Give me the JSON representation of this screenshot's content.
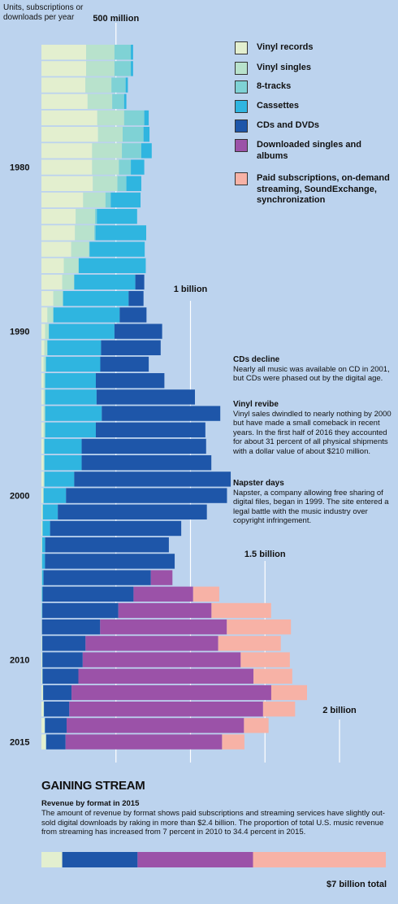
{
  "chart_data": [
    {
      "type": "bar",
      "subtype": "stacked-horizontal",
      "unit_label": "Units, subscriptions or downloads per year",
      "years": [
        1973,
        1974,
        1975,
        1976,
        1977,
        1978,
        1979,
        1980,
        1981,
        1982,
        1983,
        1984,
        1985,
        1986,
        1987,
        1988,
        1989,
        1990,
        1991,
        1992,
        1993,
        1994,
        1995,
        1996,
        1997,
        1998,
        1999,
        2000,
        2001,
        2002,
        2003,
        2004,
        2005,
        2006,
        2007,
        2008,
        2009,
        2010,
        2011,
        2012,
        2013,
        2014,
        2015
      ],
      "year_labels": [
        "1980",
        "1990",
        "2000",
        "2010",
        "2015"
      ],
      "gridlines": [
        {
          "value": 500,
          "label": "500 million"
        },
        {
          "value": 1000,
          "label": "1 billion"
        },
        {
          "value": 1500,
          "label": "1.5 billion"
        },
        {
          "value": 2000,
          "label": "2 billion"
        }
      ],
      "unit": "millions",
      "series": [
        {
          "name": "Vinyl records",
          "color": "#e3efcf",
          "values": [
            300,
            300,
            295,
            310,
            375,
            380,
            340,
            340,
            345,
            280,
            230,
            225,
            200,
            150,
            140,
            80,
            40,
            25,
            20,
            15,
            15,
            15,
            15,
            15,
            15,
            15,
            15,
            10,
            5,
            5,
            3,
            2,
            2,
            2,
            2,
            2,
            4,
            5,
            6,
            10,
            15,
            22,
            30
          ]
        },
        {
          "name": "Vinyl singles",
          "color": "#b8e2cc",
          "values": [
            190,
            190,
            175,
            165,
            180,
            165,
            200,
            180,
            165,
            150,
            130,
            130,
            120,
            100,
            80,
            65,
            40,
            25,
            20,
            15,
            10,
            10,
            10,
            10,
            5,
            5,
            5,
            5,
            5,
            3,
            2,
            2,
            2,
            1,
            1,
            1,
            1,
            1,
            1,
            1,
            1,
            1,
            1
          ]
        },
        {
          "name": "8-tracks",
          "color": "#7fd2d5",
          "values": [
            110,
            110,
            95,
            80,
            135,
            140,
            130,
            80,
            60,
            35,
            12,
            8,
            3,
            0,
            0,
            0,
            0,
            0,
            0,
            0,
            0,
            0,
            0,
            0,
            0,
            0,
            0,
            0,
            0,
            0,
            0,
            0,
            0,
            0,
            0,
            0,
            0,
            0,
            0,
            0,
            0,
            0,
            0
          ]
        },
        {
          "name": "Cassettes",
          "color": "#2fb5e0",
          "values": [
            15,
            15,
            15,
            15,
            30,
            40,
            70,
            90,
            100,
            200,
            270,
            340,
            370,
            450,
            410,
            440,
            445,
            440,
            360,
            365,
            340,
            345,
            380,
            340,
            250,
            250,
            200,
            150,
            100,
            50,
            20,
            20,
            10,
            5,
            3,
            1,
            1,
            1,
            1,
            1,
            1,
            1,
            1
          ]
        },
        {
          "name": "CDs and DVDs",
          "color": "#1e56a9",
          "values": [
            0,
            0,
            0,
            0,
            0,
            0,
            0,
            0,
            0,
            0,
            0,
            0,
            0,
            0,
            60,
            100,
            180,
            320,
            400,
            325,
            460,
            660,
            795,
            735,
            835,
            870,
            1050,
            1080,
            1000,
            880,
            830,
            870,
            720,
            610,
            510,
            390,
            290,
            270,
            240,
            190,
            170,
            145,
            130
          ]
        },
        {
          "name": "Downloaded singles and albums",
          "color": "#9b52a8",
          "values": [
            0,
            0,
            0,
            0,
            0,
            0,
            0,
            0,
            0,
            0,
            0,
            0,
            0,
            0,
            0,
            0,
            0,
            0,
            0,
            0,
            0,
            0,
            0,
            0,
            0,
            0,
            0,
            0,
            0,
            0,
            0,
            0,
            145,
            400,
            625,
            850,
            890,
            1060,
            1175,
            1340,
            1300,
            1190,
            1050
          ]
        },
        {
          "name": "Paid subscriptions, on-demand streaming, SoundExchange, synchronization",
          "color": "#f7b2a6",
          "values": [
            0,
            0,
            0,
            0,
            0,
            0,
            0,
            0,
            0,
            0,
            0,
            0,
            0,
            0,
            0,
            0,
            0,
            0,
            0,
            0,
            0,
            0,
            0,
            0,
            0,
            0,
            0,
            0,
            0,
            0,
            0,
            0,
            0,
            175,
            400,
            430,
            420,
            330,
            260,
            240,
            215,
            165,
            150
          ]
        }
      ]
    },
    {
      "type": "bar",
      "subtype": "stacked-100",
      "title": "GAINING STREAM",
      "subtitle": "Revenue by format in 2015",
      "total_label": "$7 billion total",
      "segments": [
        {
          "name": "Vinyl records",
          "color": "#e3efcf",
          "value": 0.42
        },
        {
          "name": "CDs and DVDs",
          "color": "#1e56a9",
          "value": 1.52
        },
        {
          "name": "Downloaded singles and albums",
          "color": "#9b52a8",
          "value": 2.33
        },
        {
          "name": "Paid subscriptions, on-demand streaming, SoundExchange, synchronization",
          "color": "#f7b2a6",
          "value": 2.68
        }
      ]
    }
  ],
  "text": {
    "unit_label": "Units, subscriptions or downloads per year",
    "legend": [
      {
        "label": "Vinyl records",
        "color": "#e3efcf"
      },
      {
        "label": "Vinyl singles",
        "color": "#b8e2cc"
      },
      {
        "label": "8-tracks",
        "color": "#7fd2d5"
      },
      {
        "label": "Cassettes",
        "color": "#2fb5e0"
      },
      {
        "label": "CDs and DVDs",
        "color": "#1e56a9"
      },
      {
        "label": "Downloaded singles and albums",
        "color": "#9b52a8"
      },
      {
        "label": "Paid subscriptions, on-demand streaming, SoundExchange, synchronization",
        "color": "#f7b2a6"
      }
    ],
    "notes": [
      {
        "title": "CDs decline",
        "body": "Nearly all music was available on CD in 2001, but CDs were phased out by the digital age."
      },
      {
        "title": "Vinyl revibe",
        "body": "Vinyl sales dwindled to nearly nothing by 2000 but have made a small comeback in recent years. In the first half of 2016 they accounted for about 31 percent of all physical shipments with a dollar value of about $210 million."
      },
      {
        "title": "Napster days",
        "body": "Napster, a company allowing free sharing of digital files, began in 1999. The site entered a legal battle with the music industry over copyright infringement."
      }
    ],
    "bottom_title": "GAINING STREAM",
    "bottom_subtitle": "Revenue by format in 2015",
    "bottom_body": "The amount of revenue by format shows paid subscriptions and streaming services have slightly out-sold digital downloads by raking in more than $2.4 billion. The proportion of total U.S. music revenue from streaming has increased from 7 percent in 2010 to 34.4 percent in 2015.",
    "total_label": "$7 billion total"
  }
}
